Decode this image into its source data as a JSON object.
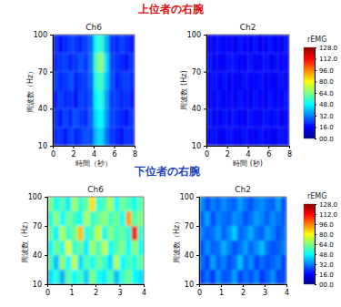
{
  "chart_data": [
    {
      "type": "heatmap",
      "suptitle": "上位者の右腕",
      "title": "Ch6",
      "xlabel": "時間（秒）",
      "ylabel": "周波数（Hz）",
      "xlim": [
        0,
        8
      ],
      "ylim": [
        10,
        100
      ],
      "xticks": [
        0,
        2,
        4,
        6,
        8
      ],
      "yticks": [
        10,
        40,
        70,
        100
      ],
      "xbins": [
        0,
        0.5,
        1,
        1.5,
        2,
        2.5,
        3,
        3.5,
        4,
        4.5,
        5,
        5.5,
        6,
        6.5,
        7,
        7.5,
        8
      ],
      "ybins": [
        10,
        25,
        40,
        55,
        70,
        85,
        100
      ],
      "cells": [
        [
          20,
          22,
          18,
          24,
          20,
          22,
          26,
          24,
          40,
          44,
          30,
          22,
          20,
          18,
          22,
          20
        ],
        [
          22,
          18,
          24,
          20,
          26,
          22,
          20,
          28,
          44,
          48,
          34,
          24,
          22,
          20,
          18,
          22
        ],
        [
          18,
          24,
          20,
          22,
          18,
          24,
          22,
          26,
          48,
          52,
          36,
          22,
          24,
          20,
          22,
          18
        ],
        [
          24,
          20,
          22,
          26,
          20,
          22,
          24,
          28,
          52,
          56,
          40,
          26,
          20,
          22,
          24,
          20
        ],
        [
          20,
          22,
          24,
          20,
          22,
          26,
          22,
          30,
          58,
          66,
          44,
          24,
          22,
          20,
          18,
          22
        ],
        [
          22,
          18,
          20,
          24,
          22,
          20,
          24,
          28,
          50,
          54,
          38,
          22,
          20,
          24,
          20,
          18
        ]
      ]
    },
    {
      "type": "heatmap",
      "title": "Ch2",
      "xlabel": "時間 (秒)",
      "ylabel": "周波数 (Hz)",
      "xlim": [
        0,
        8
      ],
      "ylim": [
        10,
        100
      ],
      "xticks": [
        0,
        2,
        4,
        6,
        8
      ],
      "yticks": [
        10,
        40,
        70,
        100
      ],
      "xbins": [
        0,
        0.5,
        1,
        1.5,
        2,
        2.5,
        3,
        3.5,
        4,
        4.5,
        5,
        5.5,
        6,
        6.5,
        7,
        7.5,
        8
      ],
      "ybins": [
        10,
        25,
        40,
        55,
        70,
        85,
        100
      ],
      "cells": [
        [
          16,
          18,
          14,
          16,
          18,
          16,
          14,
          18,
          16,
          14,
          18,
          16,
          14,
          16,
          18,
          16
        ],
        [
          18,
          14,
          16,
          18,
          14,
          18,
          16,
          14,
          18,
          16,
          14,
          18,
          16,
          18,
          14,
          16
        ],
        [
          14,
          16,
          18,
          14,
          16,
          14,
          18,
          16,
          14,
          18,
          16,
          14,
          18,
          16,
          16,
          18
        ],
        [
          16,
          18,
          16,
          18,
          14,
          16,
          14,
          18,
          16,
          16,
          18,
          14,
          16,
          14,
          18,
          14
        ],
        [
          18,
          14,
          16,
          14,
          18,
          18,
          16,
          14,
          18,
          14,
          16,
          18,
          14,
          18,
          16,
          16
        ],
        [
          14,
          16,
          18,
          16,
          16,
          14,
          18,
          16,
          14,
          18,
          14,
          16,
          18,
          16,
          14,
          18
        ]
      ],
      "colorbar": {
        "label": "rEMG",
        "range": [
          0,
          128
        ],
        "ticks": [
          {
            "value": 128,
            "label": "128.0"
          },
          {
            "value": 112,
            "label": "112.0"
          },
          {
            "value": 96,
            "label": "96.0"
          },
          {
            "value": 80,
            "label": "80.0"
          },
          {
            "value": 64,
            "label": "64.0"
          },
          {
            "value": 48,
            "label": "48.0"
          },
          {
            "value": 32,
            "label": "32.0"
          },
          {
            "value": 16,
            "label": "16.0"
          },
          {
            "value": 0,
            "label": "00.0"
          }
        ]
      }
    },
    {
      "type": "heatmap",
      "suptitle": "下位者の右腕",
      "title": "Ch6",
      "ylabel": "周波数（Hz）",
      "xlim": [
        0,
        4
      ],
      "ylim": [
        10,
        100
      ],
      "xticks": [
        0,
        1,
        2,
        3,
        4
      ],
      "yticks": [
        10,
        40,
        70,
        100
      ],
      "xbins": [
        0,
        0.25,
        0.5,
        0.75,
        1,
        1.25,
        1.5,
        1.75,
        2,
        2.25,
        2.5,
        2.75,
        3,
        3.25,
        3.5,
        3.75,
        4
      ],
      "ybins": [
        10,
        25,
        40,
        55,
        70,
        85,
        100
      ],
      "cells": [
        [
          44,
          52,
          38,
          60,
          48,
          56,
          42,
          64,
          50,
          46,
          58,
          40,
          54,
          62,
          48,
          44
        ],
        [
          56,
          40,
          66,
          48,
          72,
          44,
          58,
          50,
          62,
          54,
          44,
          70,
          48,
          56,
          52,
          60
        ],
        [
          48,
          62,
          52,
          76,
          54,
          60,
          46,
          68,
          56,
          72,
          50,
          58,
          64,
          48,
          66,
          50
        ],
        [
          60,
          46,
          70,
          54,
          62,
          88,
          52,
          58,
          74,
          50,
          64,
          56,
          60,
          52,
          112,
          54
        ],
        [
          52,
          66,
          48,
          62,
          56,
          50,
          70,
          54,
          60,
          66,
          56,
          62,
          50,
          92,
          58,
          64
        ],
        [
          64,
          50,
          58,
          46,
          68,
          54,
          60,
          84,
          52,
          58,
          70,
          48,
          62,
          56,
          50,
          60
        ]
      ]
    },
    {
      "type": "heatmap",
      "title": "Ch2",
      "ylabel": "周波数（Hz）",
      "xlim": [
        0,
        4
      ],
      "ylim": [
        10,
        100
      ],
      "xticks": [
        0,
        1,
        2,
        3,
        4
      ],
      "yticks": [
        10,
        40,
        70,
        100
      ],
      "xbins": [
        0,
        0.25,
        0.5,
        0.75,
        1,
        1.25,
        1.5,
        1.75,
        2,
        2.25,
        2.5,
        2.75,
        3,
        3.25,
        3.5,
        3.75,
        4
      ],
      "ybins": [
        10,
        25,
        40,
        55,
        70,
        85,
        100
      ],
      "cells": [
        [
          24,
          30,
          22,
          34,
          26,
          28,
          36,
          24,
          30,
          26,
          32,
          22,
          28,
          34,
          24,
          26
        ],
        [
          30,
          24,
          36,
          28,
          32,
          26,
          30,
          40,
          28,
          34,
          24,
          30,
          26,
          28,
          32,
          24
        ],
        [
          26,
          34,
          28,
          30,
          38,
          32,
          26,
          30,
          36,
          28,
          34,
          40,
          30,
          26,
          28,
          32
        ],
        [
          32,
          28,
          30,
          36,
          28,
          34,
          42,
          28,
          32,
          38,
          30,
          28,
          36,
          32,
          26,
          30
        ],
        [
          28,
          36,
          26,
          32,
          30,
          28,
          34,
          32,
          26,
          30,
          36,
          32,
          28,
          34,
          30,
          28
        ],
        [
          34,
          26,
          32,
          28,
          34,
          30,
          28,
          36,
          30,
          26,
          32,
          34,
          30,
          28,
          36,
          26
        ]
      ],
      "colorbar": {
        "label": "rEMG",
        "range": [
          0,
          128
        ],
        "ticks": [
          {
            "value": 128,
            "label": "128.0"
          },
          {
            "value": 112,
            "label": "112.0"
          },
          {
            "value": 96,
            "label": "96.0"
          },
          {
            "value": 80,
            "label": "80.0"
          },
          {
            "value": 64,
            "label": "64.0"
          },
          {
            "value": 48,
            "label": "48.0"
          },
          {
            "value": 32,
            "label": "32.0"
          },
          {
            "value": 16,
            "label": "16.0"
          },
          {
            "value": 0,
            "label": "00.0"
          }
        ]
      }
    }
  ]
}
